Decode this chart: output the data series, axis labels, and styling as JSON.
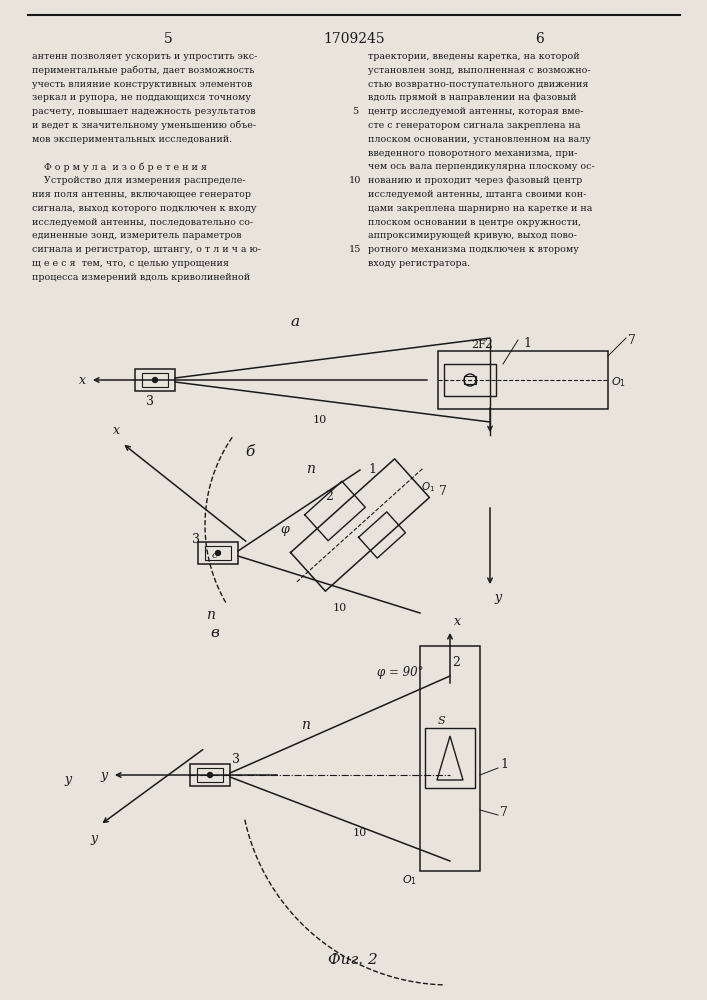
{
  "page_width": 7.07,
  "page_height": 10.0,
  "dpi": 100,
  "bg_color": "#e8e4dc",
  "text_color": "#1a1a1a",
  "line_color": "#1a1a1a",
  "header": {
    "left_num": "5",
    "center_num": "1709245",
    "right_num": "6"
  },
  "left_col_lines": [
    "антенн позволяет ускорить и упростить экс-",
    "периментальные работы, дает возможность",
    "учесть влияние конструктивных элементов",
    "зеркал и рупора, не поддающихся точному",
    "расчету, повышает надежность результатов",
    "и ведет к значительному уменьшению объе-",
    "мов экспериментальных исследований.",
    "",
    "    Ф о р м у л а  и з о б р е т е н и я",
    "    Устройство для измерения распределе-",
    "ния поля антенны, включающее генератор",
    "сигнала, выход которого подключен к входу",
    "исследуемой антенны, последовательно со-",
    "единенные зонд, измеритель параметров",
    "сигнала и регистратор, штангу, о т л и ч а ю-",
    "щ е е с я  тем, что, с целью упрощения",
    "процесса измерений вдоль криволинейной"
  ],
  "right_col_lines": [
    "траектории, введены каретка, на которой",
    "установлен зонд, выполненная с возможно-",
    "стью возвратно-поступательного движения",
    "вдоль прямой в направлении на фазовый",
    "центр исследуемой антенны, которая вме-",
    "сте с генератором сигнала закреплена на",
    "плоском основании, установленном на валу",
    "введенного поворотного механизма, при-",
    "чем ось вала перпендикулярна плоскому ос-",
    "нованию и проходит через фазовый центр",
    "исследуемой антенны, штанга своими кон-",
    "цами закреплена шарнирно на каретке и на",
    "плоском основании в центре окружности,",
    "аппроксимирующей кривую, выход пово-",
    "ротного механизма подключен к второму",
    "входу регистратора."
  ],
  "fig_label": "Фиг. 2"
}
